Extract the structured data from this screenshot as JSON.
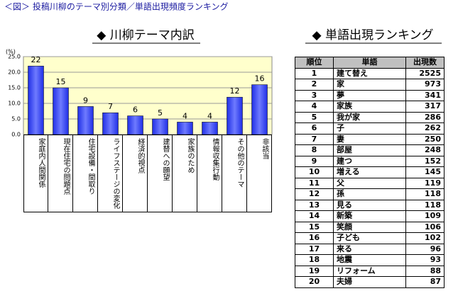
{
  "header": {
    "title": "＜図＞ 投稿川柳のテーマ別分類／単語出現頻度ランキング"
  },
  "chart_data": {
    "type": "bar",
    "title": "◆ 川柳テーマ内訳",
    "y_label": "(%)",
    "categories": [
      "家庭内人間関係",
      "現在住宅の問題点",
      "住宅設備・間取り",
      "ライフステージの変化",
      "経済的視点",
      "建替への願望",
      "家族のため",
      "情報収集行動",
      "その他のテーマ",
      "非該当"
    ],
    "values": [
      22,
      15,
      9,
      7,
      6,
      5,
      4,
      4,
      12,
      16
    ],
    "color": "#1f2ee6",
    "ylim": [
      0,
      25
    ],
    "yticks": [
      {
        "value": 0,
        "label": "0.0"
      },
      {
        "value": 5,
        "label": "5.0"
      },
      {
        "value": 10,
        "label": "10.0"
      },
      {
        "value": 15,
        "label": "15.0"
      },
      {
        "value": 20,
        "label": "20.0"
      },
      {
        "value": 25,
        "label": "25.0"
      }
    ],
    "grid": true
  },
  "table": {
    "title": "◆ 単語出現ランキング",
    "columns": [
      "順位",
      "単語",
      "出現数"
    ],
    "rows": [
      [
        1,
        "建て替え",
        2525
      ],
      [
        2,
        "家",
        973
      ],
      [
        3,
        "夢",
        341
      ],
      [
        4,
        "家族",
        317
      ],
      [
        5,
        "我が家",
        286
      ],
      [
        6,
        "子",
        262
      ],
      [
        7,
        "妻",
        250
      ],
      [
        8,
        "部屋",
        248
      ],
      [
        9,
        "建つ",
        152
      ],
      [
        10,
        "増える",
        145
      ],
      [
        11,
        "父",
        119
      ],
      [
        12,
        "孫",
        118
      ],
      [
        13,
        "見る",
        118
      ],
      [
        14,
        "新築",
        109
      ],
      [
        15,
        "笑顔",
        106
      ],
      [
        16,
        "子ども",
        102
      ],
      [
        17,
        "来る",
        96
      ],
      [
        18,
        "地震",
        93
      ],
      [
        19,
        "リフォーム",
        88
      ],
      [
        20,
        "夫婦",
        87
      ]
    ]
  }
}
